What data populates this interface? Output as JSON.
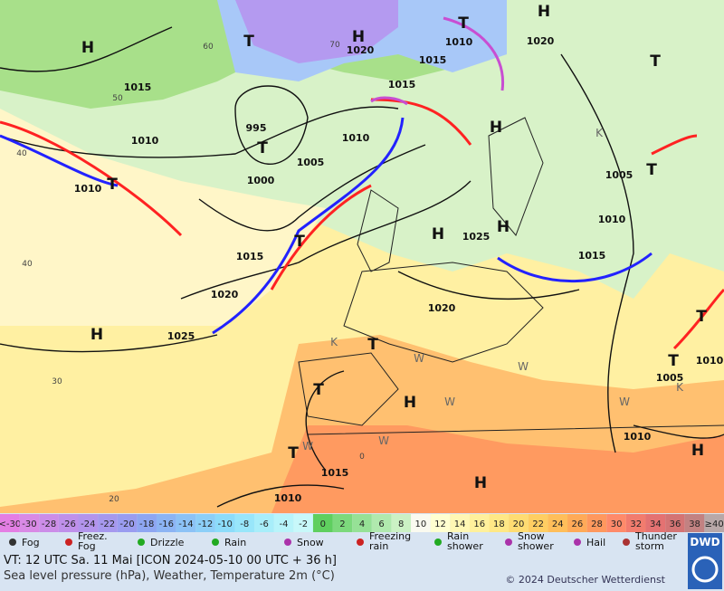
{
  "map": {
    "pressure_labels": [
      "1015",
      "1010",
      "1010",
      "995",
      "1005",
      "1000",
      "1010",
      "1015",
      "1015",
      "1020",
      "1010",
      "1020",
      "1005",
      "1010",
      "1015",
      "1025",
      "1015",
      "1020",
      "1025",
      "1020",
      "1005",
      "1010",
      "1010",
      "1015",
      "1010"
    ],
    "centers": [
      "H",
      "T",
      "H",
      "T",
      "H",
      "T",
      "H",
      "T",
      "T",
      "H",
      "H",
      "T",
      "T",
      "H",
      "T",
      "T",
      "H",
      "T",
      "H",
      "T",
      "T",
      "H"
    ],
    "symbols": [
      "K",
      "W",
      "W",
      "W",
      "W",
      "W",
      "W",
      "K",
      "K"
    ],
    "grid_labels": [
      "60",
      "50",
      "40",
      "40",
      "30",
      "20",
      "0",
      "70"
    ]
  },
  "legend": {
    "temperature": [
      "<-30",
      -30,
      -28,
      -26,
      -24,
      -22,
      -20,
      -18,
      -16,
      -14,
      -12,
      -10,
      -8,
      -6,
      -4,
      -2,
      0,
      2,
      4,
      6,
      8,
      10,
      12,
      14,
      16,
      18,
      20,
      22,
      24,
      26,
      28,
      30,
      32,
      34,
      36,
      38,
      "≥40"
    ],
    "colors": [
      "#e47ee4",
      "#d98ae6",
      "#cc8de8",
      "#bf90ea",
      "#b394ec",
      "#a698ee",
      "#9a9cf0",
      "#8ea6f2",
      "#8cb4f4",
      "#8cc2f6",
      "#8ccff8",
      "#8cdcfa",
      "#98e6fa",
      "#a8eefa",
      "#b8f4fa",
      "#c8f8fa",
      "#5fcf5f",
      "#7cd97c",
      "#96e196",
      "#b0e9ae",
      "#cbf1c4",
      "#fafaf0",
      "#ffffd0",
      "#fff7b4",
      "#fff09c",
      "#ffe886",
      "#ffdc72",
      "#ffce62",
      "#ffbe5a",
      "#ffaa58",
      "#ff985e",
      "#ff8a6a",
      "#f27c6e",
      "#e47272",
      "#d47474",
      "#c28282",
      "#b8a8a8"
    ],
    "weather": [
      "Fog",
      "Freez.\nFog",
      "Drizzle",
      "Rain",
      "Snow",
      "Freezing\nrain",
      "Rain\nshower",
      "Snow\nshower",
      "Hail",
      "Thunder\nstorm"
    ]
  },
  "footer": {
    "valid_time": "VT: 12 UTC Sa.  11 Mai [ICON 2024-05-10  00 UTC + 36 h]",
    "description": "Sea level pressure (hPa), Weather, Temperature 2m (°C)",
    "copyright": "© 2024 Deutscher Wetterdienst",
    "logo": "DWD"
  }
}
